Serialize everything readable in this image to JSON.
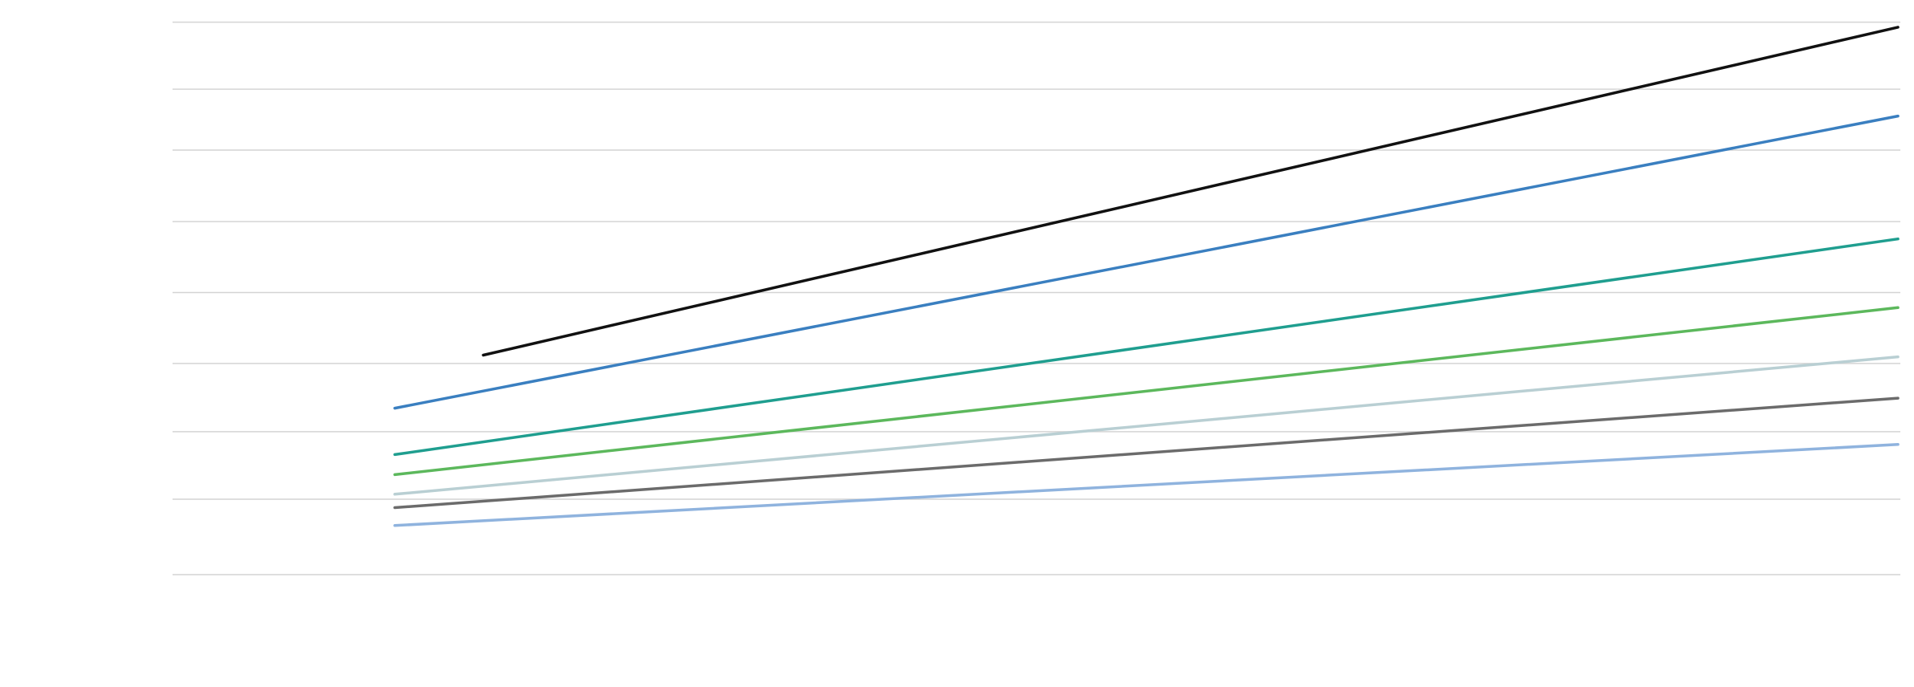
{
  "chart_data": {
    "type": "line",
    "title": "",
    "xlabel": "",
    "ylabel": "",
    "ylim": [
      0,
      100
    ],
    "xlim": [
      0,
      10
    ],
    "grid": true,
    "legend": "none",
    "gridlines_y": [
      0,
      13.5,
      25.6,
      37.8,
      50.5,
      63.2,
      76.0,
      86.9,
      98.9
    ],
    "series": [
      {
        "color": "#111111",
        "x": [
          2,
          10
        ],
        "y": [
          39.3,
          98.0
        ]
      },
      {
        "color": "#3a7fc0",
        "x": [
          1.5,
          10
        ],
        "y": [
          29.8,
          82.1
        ]
      },
      {
        "color": "#1f9e8f",
        "x": [
          1.5,
          10
        ],
        "y": [
          21.5,
          60.1
        ]
      },
      {
        "color": "#5cb85c",
        "x": [
          1.5,
          10
        ],
        "y": [
          17.9,
          47.8
        ]
      },
      {
        "color": "#b9cfd3",
        "x": [
          1.5,
          10
        ],
        "y": [
          14.4,
          39.0
        ]
      },
      {
        "color": "#6b6b6b",
        "x": [
          1.5,
          10
        ],
        "y": [
          12.0,
          31.6
        ]
      },
      {
        "color": "#8fb3de",
        "x": [
          1.5,
          10
        ],
        "y": [
          8.8,
          23.3
        ]
      }
    ]
  }
}
